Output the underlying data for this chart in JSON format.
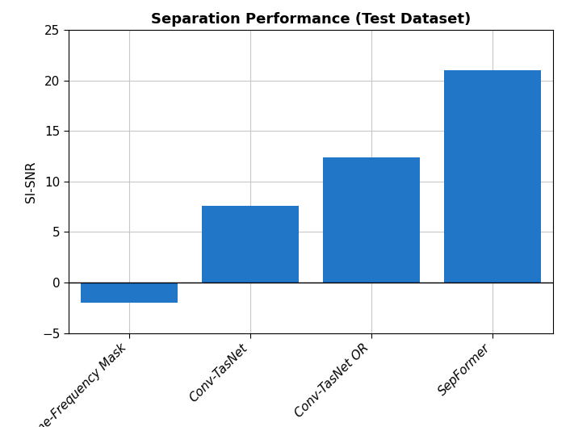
{
  "categories": [
    "Time-Frequency Mask",
    "Conv-TasNet",
    "Conv-TasNet OR",
    "SepFormer"
  ],
  "values": [
    -2.0,
    7.6,
    12.4,
    21.0
  ],
  "bar_color": "#2176c8",
  "title": "Separation Performance (Test Dataset)",
  "ylabel": "SI-SNR",
  "ylim": [
    -5,
    25
  ],
  "yticks": [
    -5,
    0,
    5,
    10,
    15,
    20,
    25
  ],
  "title_fontsize": 13,
  "label_fontsize": 11,
  "tick_fontsize": 11,
  "background_color": "#ffffff",
  "grid_color": "#c8c8c8"
}
